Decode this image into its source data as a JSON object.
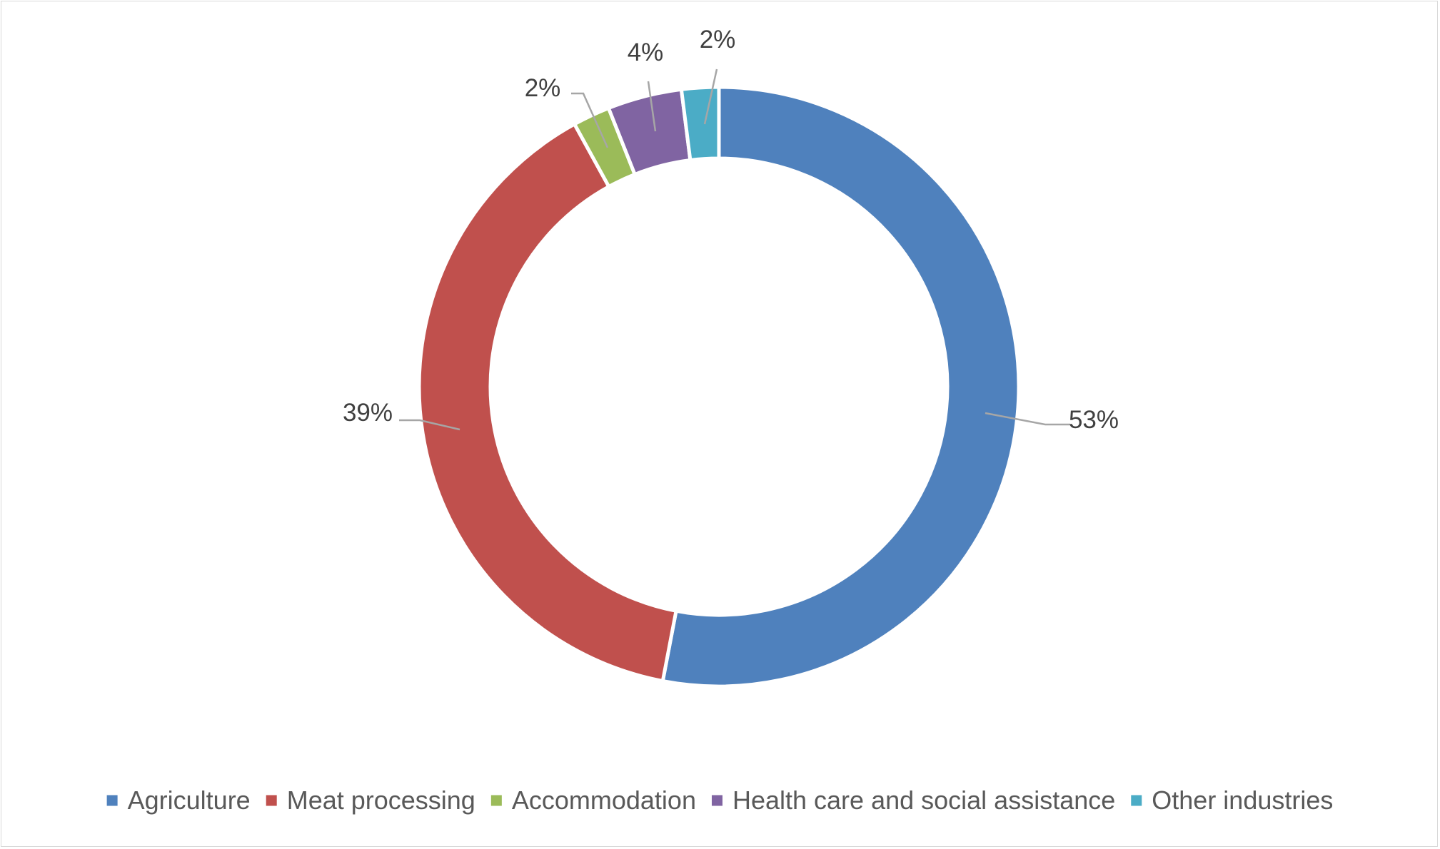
{
  "chart_data": {
    "type": "pie",
    "subtype": "doughnut",
    "title": "",
    "categories": [
      "Agriculture",
      "Meat processing",
      "Accommodation",
      "Health care and social assistance",
      "Other industries"
    ],
    "values": [
      53,
      39,
      2,
      4,
      2
    ],
    "labels": [
      "53%",
      "39%",
      "2%",
      "4%",
      "2%"
    ],
    "colors": [
      "#4f81bd",
      "#c0504d",
      "#9bbb59",
      "#8064a2",
      "#4bacc6"
    ],
    "legend_position": "bottom"
  }
}
